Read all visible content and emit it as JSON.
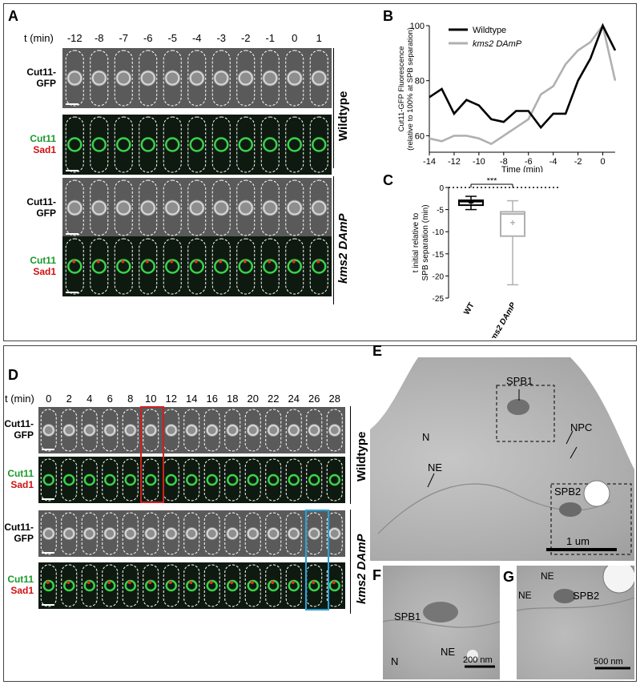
{
  "panelA": {
    "label": "A",
    "t_label": "t (min)",
    "times": [
      "-12",
      "-8",
      "-7",
      "-6",
      "-5",
      "-4",
      "-3",
      "-2",
      "-1",
      "0",
      "1"
    ],
    "rows": [
      {
        "l1": "Cut11-",
        "l2": "GFP",
        "c1": "#000000",
        "c2": "#000000",
        "type": "gray"
      },
      {
        "l1": "Cut11",
        "l2": "Sad1",
        "c1": "#1a9a2a",
        "c2": "#d01010",
        "type": "green"
      },
      {
        "l1": "Cut11-",
        "l2": "GFP",
        "c1": "#000000",
        "c2": "#000000",
        "type": "gray"
      },
      {
        "l1": "Cut11",
        "l2": "Sad1",
        "c1": "#1a9a2a",
        "c2": "#d01010",
        "type": "green"
      }
    ],
    "group1": "Wildtype",
    "group2": "kms2 DAmP"
  },
  "panelB": {
    "label": "B",
    "ylabel": "Cut11-GFP Fluorescence (relative to 100% at SPB separation)",
    "xlabel": "Time (min)",
    "chart_data": {
      "type": "line",
      "xlim": [
        -14,
        1
      ],
      "ylim": [
        54,
        100
      ],
      "xticks": [
        "-14",
        "-12",
        "-10",
        "-8",
        "-6",
        "-4",
        "-2",
        "0"
      ],
      "yticks": [
        "60",
        "80",
        "100"
      ],
      "series": [
        {
          "name": "Wildtype",
          "color": "#000000",
          "x": [
            -14,
            -13,
            -12,
            -11,
            -10,
            -9,
            -8,
            -7,
            -6,
            -5,
            -4,
            -3,
            -2,
            -1,
            0,
            1
          ],
          "y": [
            74,
            77,
            68,
            73,
            71,
            66,
            65,
            69,
            69,
            63,
            68,
            68,
            80,
            88,
            100,
            91
          ]
        },
        {
          "name": "kms2 DAmP",
          "color": "#b0b0b0",
          "x": [
            -14,
            -13,
            -12,
            -11,
            -10,
            -9,
            -8,
            -7,
            -6,
            -5,
            -4,
            -3,
            -2,
            -1,
            0,
            1
          ],
          "y": [
            59,
            58,
            60,
            60,
            59,
            57,
            60,
            63,
            66,
            75,
            78,
            86,
            91,
            94,
            100,
            80
          ]
        }
      ]
    }
  },
  "panelC": {
    "label": "C",
    "ylabel": "t initial relative to SPB separation (min)",
    "sig": "***",
    "chart_data": {
      "type": "box",
      "ylim": [
        -25,
        0
      ],
      "yticks": [
        "0",
        "-5",
        "-10",
        "-15",
        "-20",
        "-25"
      ],
      "categories": [
        "WT",
        "kms2 DAmP"
      ],
      "boxes": [
        {
          "name": "WT",
          "min": -5,
          "q1": -4,
          "median": -3.2,
          "q3": -2.9,
          "max": -2,
          "mean": -3.5,
          "color": "#000000"
        },
        {
          "name": "kms2 DAmP",
          "min": -22,
          "q1": -11,
          "median": -6,
          "q3": -5.5,
          "max": -3,
          "mean": -8,
          "color": "#b0b0b0"
        }
      ]
    }
  },
  "panelD": {
    "label": "D",
    "t_label": "t (min)",
    "times": [
      "0",
      "2",
      "4",
      "6",
      "8",
      "10",
      "12",
      "14",
      "16",
      "18",
      "20",
      "22",
      "24",
      "26",
      "28"
    ],
    "rows": [
      {
        "l1": "Cut11-",
        "l2": "GFP",
        "c1": "#000000",
        "c2": "#000000",
        "type": "gray"
      },
      {
        "l1": "Cut11",
        "l2": "Sad1",
        "c1": "#1a9a2a",
        "c2": "#d01010",
        "type": "green"
      },
      {
        "l1": "Cut11-",
        "l2": "GFP",
        "c1": "#000000",
        "c2": "#000000",
        "type": "gray"
      },
      {
        "l1": "Cut11",
        "l2": "Sad1",
        "c1": "#1a9a2a",
        "c2": "#d01010",
        "type": "green"
      }
    ],
    "group1": "Wildtype",
    "group2": "kms2 DAmP"
  },
  "panelE": {
    "label": "E",
    "N": "N",
    "NE": "NE",
    "SPB1": "SPB1",
    "SPB2": "SPB2",
    "NPC": "NPC",
    "scale": "1 um"
  },
  "panelF": {
    "label": "F",
    "SPB1": "SPB1",
    "N": "N",
    "NE": "NE",
    "scale": "200 nm"
  },
  "panelG": {
    "label": "G",
    "NE1": "NE",
    "NE2": "NE",
    "SPB2": "SPB2",
    "scale": "500 nm"
  }
}
